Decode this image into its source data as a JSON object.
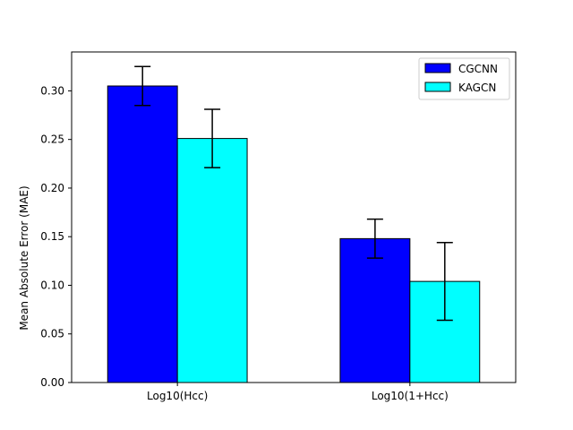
{
  "chart_data": {
    "type": "bar",
    "title": "",
    "xlabel": "",
    "ylabel": "Mean Absolute Error (MAE)",
    "categories": [
      "Log10(Hcc)",
      "Log10(1+Hcc)"
    ],
    "series": [
      {
        "name": "CGCNN",
        "color": "#0000ff",
        "values": [
          0.305,
          0.148
        ],
        "errors": [
          0.02,
          0.02
        ]
      },
      {
        "name": "KAGCN",
        "color": "#00ffff",
        "values": [
          0.251,
          0.104
        ],
        "errors": [
          0.03,
          0.04
        ]
      }
    ],
    "ylim": [
      0,
      0.34
    ],
    "yticks": [
      0.0,
      0.05,
      0.1,
      0.15,
      0.2,
      0.25,
      0.3
    ],
    "ytick_labels": [
      "0.00",
      "0.05",
      "0.10",
      "0.15",
      "0.20",
      "0.25",
      "0.30"
    ],
    "grid": false,
    "legend": "top-right",
    "error_bars": true
  }
}
